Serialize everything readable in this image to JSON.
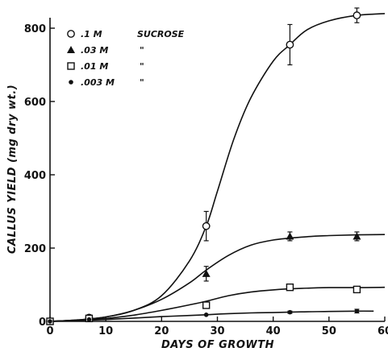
{
  "chart_data": {
    "type": "scatter",
    "title": "",
    "xlabel": "DAYS OF GROWTH",
    "ylabel": "CALLUS YIELD (mg dry wt.)",
    "xlim": [
      0,
      60
    ],
    "ylim": [
      0,
      800
    ],
    "x_ticks": [
      "0",
      "10",
      "20",
      "30",
      "40",
      "50",
      "60"
    ],
    "y_ticks": [
      "0",
      "200",
      "400",
      "600",
      "800"
    ],
    "grid": false,
    "legend_position": "top-left",
    "legend_unit": "SUCROSE",
    "series": [
      {
        "name": ".1 M",
        "marker": "open-circle",
        "points": [
          {
            "x": 0,
            "y": 0
          },
          {
            "x": 7,
            "y": 10
          },
          {
            "x": 28,
            "y": 260,
            "err": 40
          },
          {
            "x": 43,
            "y": 755,
            "err": 55
          },
          {
            "x": 55,
            "y": 835,
            "err": 20
          }
        ],
        "curve": [
          [
            0,
            0
          ],
          [
            5,
            4
          ],
          [
            10,
            12
          ],
          [
            15,
            30
          ],
          [
            20,
            70
          ],
          [
            25,
            165
          ],
          [
            28,
            260
          ],
          [
            30,
            355
          ],
          [
            33,
            500
          ],
          [
            36,
            610
          ],
          [
            40,
            710
          ],
          [
            43,
            755
          ],
          [
            46,
            795
          ],
          [
            50,
            820
          ],
          [
            55,
            835
          ],
          [
            60,
            840
          ]
        ]
      },
      {
        "name": ".03 M",
        "marker": "filled-triangle",
        "points": [
          {
            "x": 0,
            "y": 0
          },
          {
            "x": 7,
            "y": 9
          },
          {
            "x": 28,
            "y": 130,
            "err": 20
          },
          {
            "x": 43,
            "y": 232,
            "err": 12
          },
          {
            "x": 55,
            "y": 232,
            "err": 12
          }
        ],
        "curve": [
          [
            0,
            0
          ],
          [
            5,
            4
          ],
          [
            10,
            12
          ],
          [
            15,
            30
          ],
          [
            20,
            60
          ],
          [
            25,
            105
          ],
          [
            28,
            140
          ],
          [
            32,
            180
          ],
          [
            36,
            208
          ],
          [
            40,
            222
          ],
          [
            45,
            230
          ],
          [
            50,
            234
          ],
          [
            55,
            236
          ],
          [
            60,
            237
          ]
        ]
      },
      {
        "name": ".01 M",
        "marker": "open-square",
        "points": [
          {
            "x": 0,
            "y": 0
          },
          {
            "x": 7,
            "y": 8
          },
          {
            "x": 28,
            "y": 44,
            "err": 8
          },
          {
            "x": 43,
            "y": 93,
            "err": 7
          },
          {
            "x": 55,
            "y": 87,
            "err": 7
          }
        ],
        "curve": [
          [
            0,
            0
          ],
          [
            5,
            3
          ],
          [
            10,
            8
          ],
          [
            15,
            17
          ],
          [
            20,
            30
          ],
          [
            25,
            45
          ],
          [
            28,
            55
          ],
          [
            32,
            70
          ],
          [
            36,
            80
          ],
          [
            40,
            86
          ],
          [
            45,
            90
          ],
          [
            50,
            92
          ],
          [
            55,
            92
          ],
          [
            60,
            93
          ]
        ]
      },
      {
        "name": ".003 M",
        "marker": "filled-dot",
        "points": [
          {
            "x": 0,
            "y": 0
          },
          {
            "x": 7,
            "y": 5
          },
          {
            "x": 28,
            "y": 18
          },
          {
            "x": 43,
            "y": 25,
            "err": 3
          },
          {
            "x": 55,
            "y": 28,
            "err": 5
          }
        ],
        "curve": [
          [
            0,
            0
          ],
          [
            5,
            2
          ],
          [
            10,
            5
          ],
          [
            15,
            9
          ],
          [
            20,
            13
          ],
          [
            25,
            16
          ],
          [
            28,
            18
          ],
          [
            32,
            21
          ],
          [
            36,
            23
          ],
          [
            40,
            24
          ],
          [
            45,
            26
          ],
          [
            50,
            27
          ],
          [
            55,
            28
          ],
          [
            58,
            28
          ]
        ]
      }
    ]
  }
}
